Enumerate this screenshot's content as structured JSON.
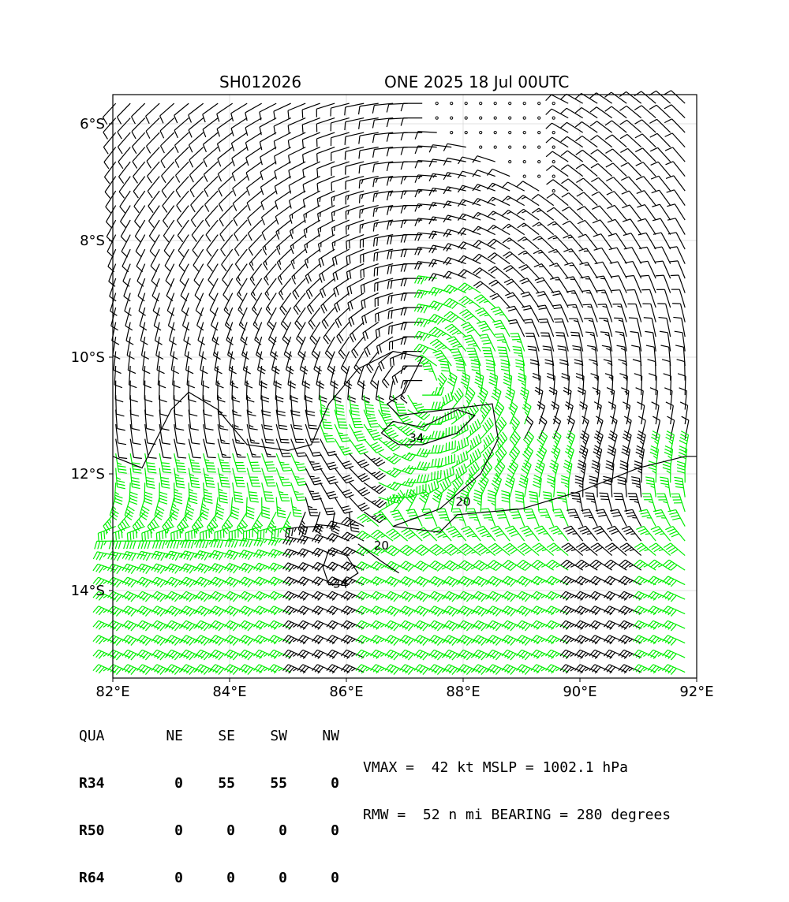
{
  "header": {
    "storm_id": "SH012026",
    "storm_time": "ONE 2025 18 Jul 00UTC"
  },
  "chart_data": {
    "type": "wind-barb-map",
    "xlim": [
      82,
      92
    ],
    "ylim": [
      -15.5,
      -5.5
    ],
    "x_ticks": [
      82,
      84,
      86,
      88,
      90,
      92
    ],
    "x_tick_labels": [
      "82°E",
      "84°E",
      "86°E",
      "88°E",
      "90°E",
      "92°E"
    ],
    "y_ticks": [
      -6,
      -8,
      -10,
      -12,
      -14
    ],
    "y_tick_labels": [
      "6°S",
      "8°S",
      "10°S",
      "12°S",
      "14°S"
    ],
    "grid": true,
    "vortex_center": {
      "lon": 87.3,
      "lat": -10.5
    },
    "barb_colors": {
      "calm": "#000000",
      "below_34kt": "#000000",
      "34_to_49kt": "#00ee00",
      "50_to_63kt": "#f0a000"
    },
    "contours": [
      {
        "label": "20",
        "label_lon": 88.0,
        "label_lat": -12.55
      },
      {
        "label": "34",
        "label_lon": 87.2,
        "label_lat": -11.45
      },
      {
        "label": "20",
        "label_lon": 86.6,
        "label_lat": -13.3
      },
      {
        "label": "34",
        "label_lon": 85.9,
        "label_lat": -13.95
      }
    ]
  },
  "wind_radii": {
    "headers": [
      "QUA",
      "NE",
      "SE",
      "SW",
      "NW"
    ],
    "rows": [
      {
        "label": "R34",
        "values": [
          "0",
          "55",
          "55",
          "0"
        ]
      },
      {
        "label": "R50",
        "values": [
          "0",
          "0",
          "0",
          "0"
        ]
      },
      {
        "label": "R64",
        "values": [
          "0",
          "0",
          "0",
          "0"
        ]
      }
    ]
  },
  "stats": {
    "line1": "VMAX =  42 kt MSLP = 1002.1 hPa",
    "line2": "RMW =  52 n mi BEARING = 280 degrees"
  }
}
